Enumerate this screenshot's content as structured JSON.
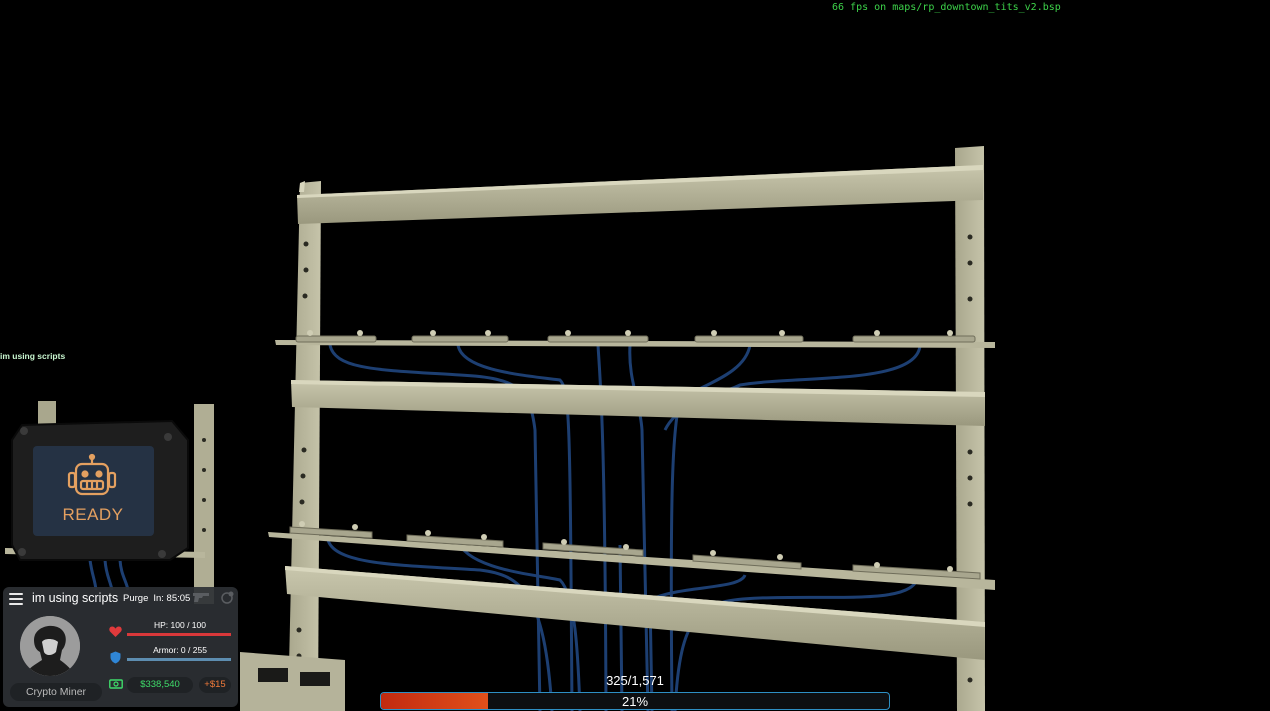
{
  "fps_text": "66 fps on maps/rp_downtown_tits_v2.bsp",
  "chat_line": "im using scripts",
  "screen_status": "READY",
  "hud": {
    "name": "im using scripts",
    "purge_label": "Purge",
    "purge_timer": "In: 85:05",
    "hp_text": "HP: 100 / 100",
    "hp_fraction": 1.0,
    "armor_text": "Armor: 0 / 255",
    "armor_fraction": 0.0,
    "money": "$338,540",
    "salary": "+$15",
    "job": "Crypto Miner"
  },
  "progress": {
    "count": "325/1,571",
    "percent_text": "21%",
    "fraction": 0.21
  },
  "colors": {
    "fps": "#3dd34a",
    "screen_text": "#e4a060",
    "money": "#3fdc6a",
    "salary": "#f07a3a",
    "hp": "#d9383a",
    "armor": "#3b9be0",
    "progress_fill": "#d9401a",
    "progress_border": "#2e8fc4"
  }
}
